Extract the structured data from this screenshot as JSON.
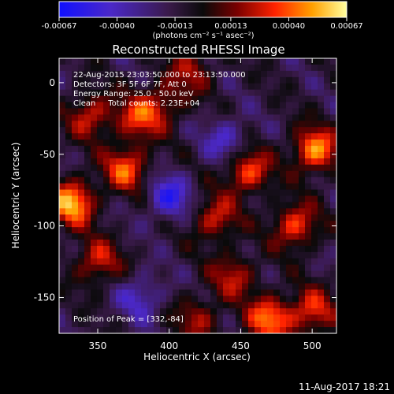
{
  "chart_data": {
    "type": "heatmap",
    "title": "Reconstructed RHESSI Image",
    "xlabel": "Heliocentric X (arcsec)",
    "ylabel": "Heliocentric Y (arcsec)",
    "xlim": [
      323,
      517
    ],
    "ylim": [
      -175,
      17
    ],
    "x_ticks": [
      350,
      400,
      450,
      500
    ],
    "y_ticks": [
      -150,
      -100,
      -50,
      0
    ],
    "colorbar": {
      "range": [
        -0.00067,
        0.00067
      ],
      "ticks": [
        "-0.00067",
        "-0.00040",
        "-0.00013",
        "0.00013",
        "0.00040",
        "0.00067"
      ],
      "unit_label": "(photons cm⁻² s⁻¹ asec⁻²)"
    },
    "info_lines": [
      "22-Aug-2015 23:03:50.000 to 23:13:50.000",
      "Detectors: 3F 5F 6F 7F, Att 0",
      "Energy Range: 25.0 - 50.0 keV",
      "Clean     Total counts: 2.23E+04"
    ],
    "peak_label": "Position of Peak = [332,-84]",
    "peak": [
      332,
      -84
    ],
    "sources": [
      {
        "x": 332,
        "y": -84,
        "value": 0.00067
      },
      {
        "x": 502,
        "y": -47,
        "value": 0.0006
      },
      {
        "x": 378,
        "y": -25,
        "value": 0.0004
      },
      {
        "x": 345,
        "y": -23,
        "value": 0.0004
      },
      {
        "x": 370,
        "y": -60,
        "value": 0.0005
      },
      {
        "x": 455,
        "y": -62,
        "value": 0.0005
      },
      {
        "x": 432,
        "y": -95,
        "value": 0.0004
      },
      {
        "x": 488,
        "y": -100,
        "value": 0.00048
      },
      {
        "x": 350,
        "y": -125,
        "value": 0.0004
      },
      {
        "x": 445,
        "y": -135,
        "value": 0.00035
      },
      {
        "x": 470,
        "y": -165,
        "value": 0.00055
      },
      {
        "x": 500,
        "y": -160,
        "value": 0.00045
      },
      {
        "x": 415,
        "y": 8,
        "value": 0.0003
      },
      {
        "x": 420,
        "y": -165,
        "value": 0.0003
      },
      {
        "x": 395,
        "y": -15,
        "value": 0.0003
      }
    ],
    "negative_regions": [
      {
        "x": 400,
        "y": -80,
        "value": -0.0004
      },
      {
        "x": 440,
        "y": -40,
        "value": -0.0003
      },
      {
        "x": 380,
        "y": -150,
        "value": -0.0003
      }
    ]
  },
  "footer_timestamp": "11-Aug-2017 18:21"
}
